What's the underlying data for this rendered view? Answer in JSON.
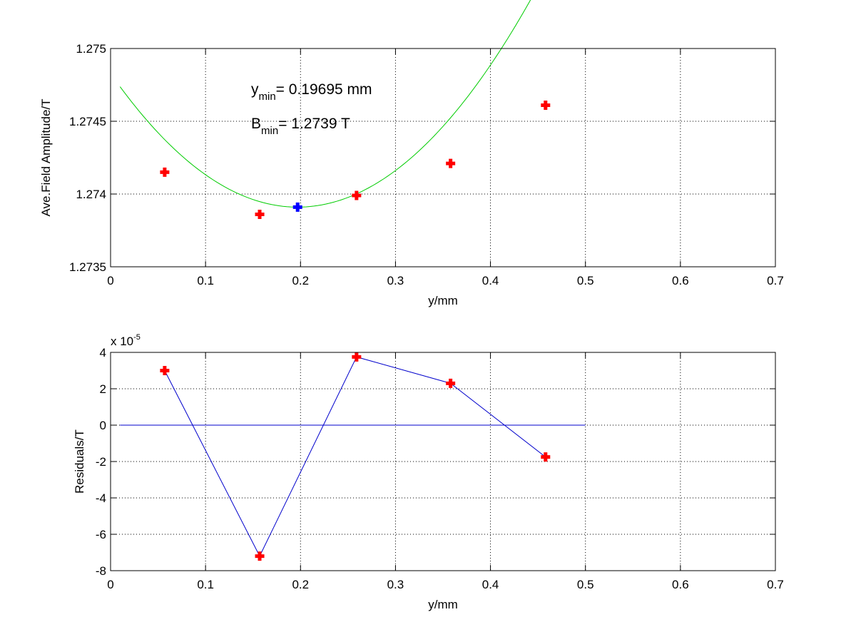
{
  "chart_data": [
    {
      "type": "scatter",
      "xlabel": "y/mm",
      "ylabel": "Ave.Field Amplitude/T",
      "xlim": [
        0,
        0.7
      ],
      "ylim": [
        1.2735,
        1.275
      ],
      "xticks": [
        "0",
        "0.1",
        "0.2",
        "0.3",
        "0.4",
        "0.5",
        "0.6",
        "0.7"
      ],
      "yticks": [
        "1.2735",
        "1.274",
        "1.2745",
        "1.275"
      ],
      "grid": true,
      "annotations": [
        {
          "main": "y",
          "sub": "min",
          "text": "= 0.19695 mm"
        },
        {
          "main": "B",
          "sub": "min",
          "text": "= 1.2739 T"
        }
      ],
      "series": [
        {
          "kind": "points",
          "color": "#ff0000",
          "marker": "plus",
          "x": [
            0.057,
            0.157,
            0.259,
            0.358,
            0.458
          ],
          "y": [
            1.27415,
            1.27386,
            1.27399,
            1.27421,
            1.27461
          ]
        },
        {
          "kind": "points",
          "color": "#0000ff",
          "marker": "plus",
          "x": [
            0.19695
          ],
          "y": [
            1.27391
          ]
        },
        {
          "kind": "quadratic_fit",
          "color": "#00cc00",
          "x_range": [
            0.01,
            0.5
          ],
          "vertex_x": 0.19695,
          "vertex_y": 1.27391,
          "curvature": 0.02368
        }
      ]
    },
    {
      "type": "line",
      "xlabel": "y/mm",
      "ylabel": "Residuals/T",
      "xlim": [
        0,
        0.7
      ],
      "ylim": [
        -8,
        4
      ],
      "y_multiplier": {
        "base": "x 10",
        "exponent": "-5"
      },
      "xticks": [
        "0",
        "0.1",
        "0.2",
        "0.3",
        "0.4",
        "0.5",
        "0.6",
        "0.7"
      ],
      "yticks": [
        "-8",
        "-6",
        "-4",
        "-2",
        "0",
        "2",
        "4"
      ],
      "grid": true,
      "series": [
        {
          "kind": "line_points",
          "color": "#ff0000",
          "line_color": "#0000cc",
          "marker": "plus",
          "x": [
            0.057,
            0.157,
            0.259,
            0.358,
            0.458
          ],
          "y": [
            3.0,
            -7.2,
            3.75,
            2.3,
            -1.75
          ]
        },
        {
          "kind": "zero_line",
          "color": "#0000cc",
          "x_range": [
            0.01,
            0.5
          ],
          "y": 0
        }
      ]
    }
  ]
}
